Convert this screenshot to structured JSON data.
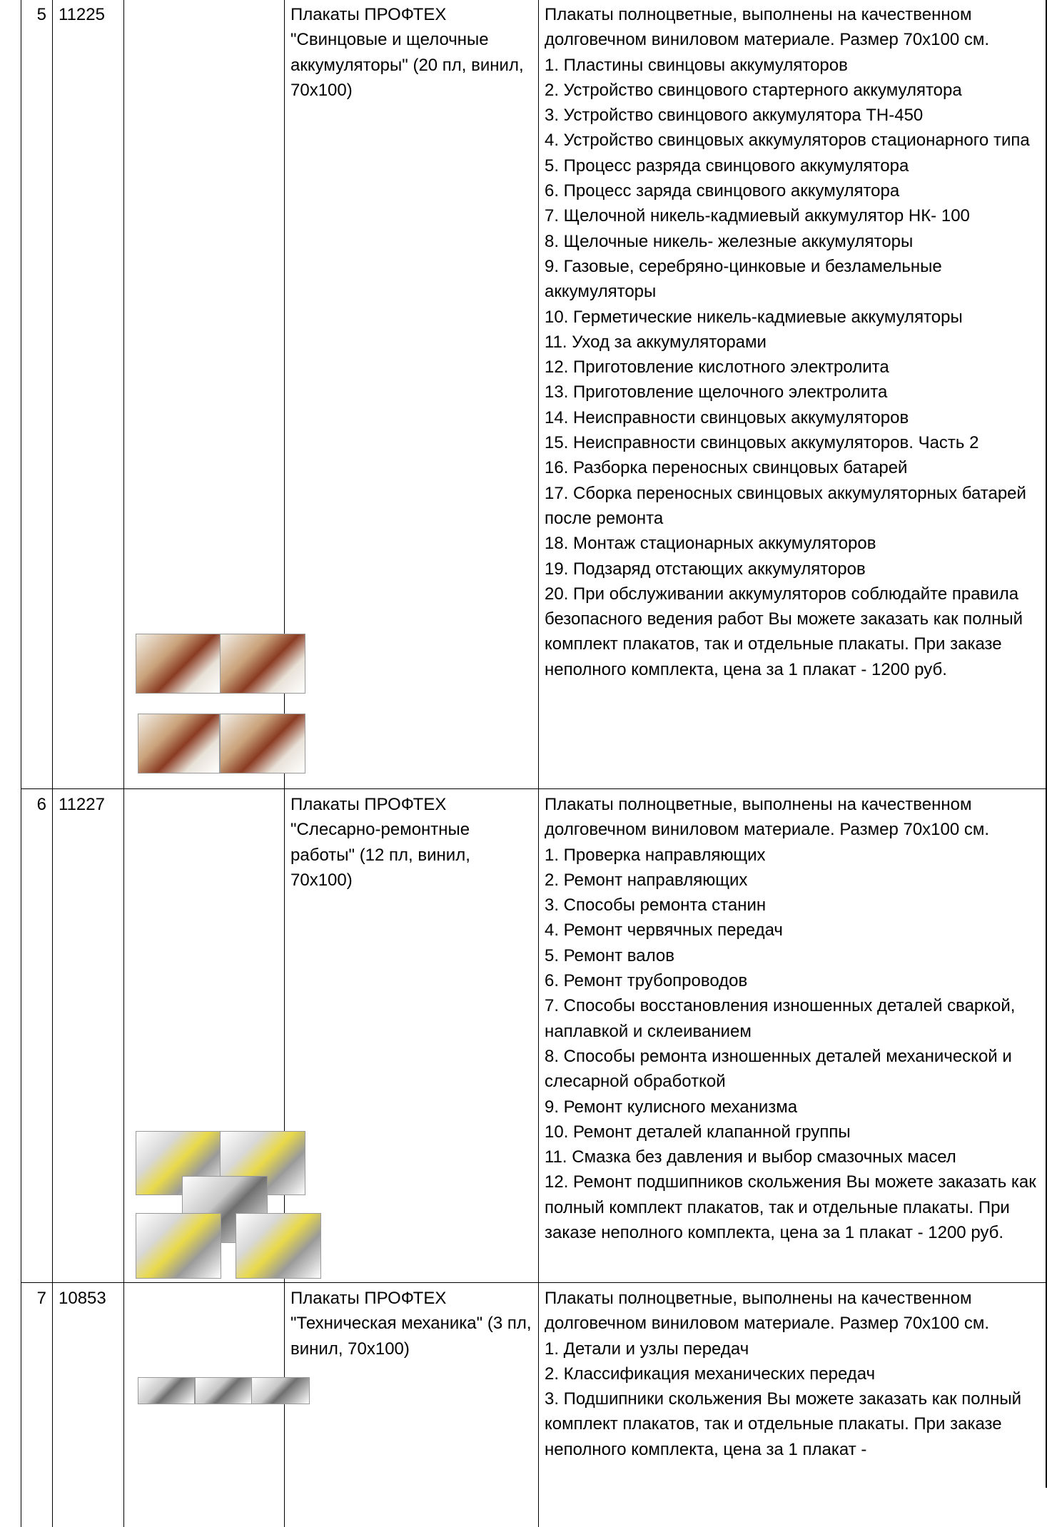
{
  "table": {
    "rows": [
      [
        "5",
        "11225",
        "Плакаты ПРОФТЕХ \"Свинцовые и щелочные аккумуляторы\" (20 пл, винил, 70х100)",
        [
          "Плакаты полноцветные, выполнены на качественном долговечном виниловом материале. Размер 70х100 см.",
          "1. Пластины свинцовы аккумуляторов",
          "2. Устройство свинцового стартерного аккумулятора",
          "3. Устройство свинцового аккумулятора ТН-450",
          "4. Устройство свинцовых аккумуляторов стационарного типа",
          "5. Процесс разряда свинцового аккумулятора",
          "6. Процесс заряда свинцового аккумулятора",
          "7. Щелочной никель-кадмиевый аккумулятор НК- 100",
          "8. Щелочные никель- железные аккумуляторы",
          "9. Газовые, серебряно-цинковые и безламельные аккумуляторы",
          "10. Герметические никель-кадмиевые аккумуляторы",
          "11. Уход за аккумуляторами",
          "12. Приготовление кислотного электролита",
          "13. Приготовление щелочного электролита",
          "14. Неисправности свинцовых аккумуляторов",
          "15. Неисправности свинцовых аккумуляторов. Часть 2",
          "16. Разборка переносных свинцовых батарей",
          "17. Сборка переносных свинцовых аккумуляторных батарей после ремонта",
          "18. Монтаж стационарных аккумуляторов",
          "19. Подзаряд отстающих аккумуляторов",
          "20. При обслуживании аккумуляторов соблюдайте правила безопасного ведения работ Вы можете заказать как полный комплект плакатов, так и отдельные плакаты. При заказе неполного комплекта, цена за 1 плакат - 1200 руб."
        ]
      ],
      [
        "6",
        "11227",
        "Плакаты ПРОФТЕХ \"Слесарно-ремонтные работы\" (12 пл, винил, 70х100)",
        [
          "Плакаты полноцветные, выполнены на качественном долговечном виниловом материале. Размер 70х100 см.",
          "1. Проверка направляющих",
          "2. Ремонт направляющих",
          "3. Способы ремонта станин",
          "4. Ремонт червячных передач",
          "5. Ремонт валов",
          "6. Ремонт трубопроводов",
          "7. Способы восстановления изношенных деталей сваркой, наплавкой и склеиванием",
          "8. Способы ремонта изношенных деталей механической и слесарной обработкой",
          "9. Ремонт кулисного механизма",
          "10. Ремонт деталей клапанной группы",
          "11. Смазка без давления и выбор смазочных масел",
          "12. Ремонт подшипников скольжения Вы можете заказать как полный комплект плакатов, так и отдельные плакаты. При заказе неполного комплекта, цена за 1 плакат - 1200 руб."
        ]
      ],
      [
        "7",
        "10853",
        "Плакаты ПРОФТЕХ \"Техническая механика\" (3 пл, винил, 70х100)",
        [
          "Плакаты полноцветные, выполнены на качественном долговечном виниловом материале. Размер 70х100 см.",
          "1. Детали и узлы передач",
          "2. Классификация механических передач",
          "3. Подшипники скольжения Вы можете заказать как полный комплект плакатов, так и отдельные плакаты. При заказе неполного комплекта, цена за 1 плакат -"
        ]
      ]
    ]
  }
}
